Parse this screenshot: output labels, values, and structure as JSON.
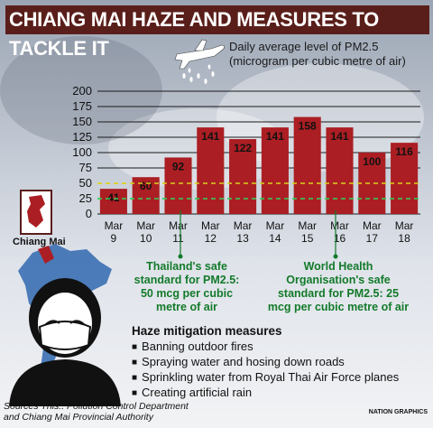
{
  "header": {
    "title": "CHIANG MAI HAZE AND MEASURES TO TACKLE IT",
    "subtitle_line1": "Daily average level of PM2.5",
    "subtitle_line2": "(microgram per cubic metre of air)"
  },
  "chart_data": {
    "type": "bar",
    "title": "CHIANG MAI HAZE AND MEASURES TO TACKLE IT",
    "subtitle": "Daily average level of PM2.5 (microgram per cubic metre of air)",
    "categories": [
      "Mar 9",
      "Mar 10",
      "Mar 11",
      "Mar 12",
      "Mar 13",
      "Mar 14",
      "Mar 15",
      "Mar 16",
      "Mar 17",
      "Mar 18"
    ],
    "category_lines": [
      [
        "Mar",
        "9"
      ],
      [
        "Mar",
        "10"
      ],
      [
        "Mar",
        "11"
      ],
      [
        "Mar",
        "12"
      ],
      [
        "Mar",
        "13"
      ],
      [
        "Mar",
        "14"
      ],
      [
        "Mar",
        "15"
      ],
      [
        "Mar",
        "16"
      ],
      [
        "Mar",
        "17"
      ],
      [
        "Mar",
        "18"
      ]
    ],
    "values": [
      41,
      60,
      92,
      141,
      122,
      141,
      158,
      141,
      100,
      116
    ],
    "ylim": [
      0,
      200
    ],
    "yticks": [
      0,
      25,
      50,
      75,
      100,
      125,
      150,
      175,
      200
    ],
    "reference_lines": [
      {
        "value": 50,
        "color": "#d7d21e",
        "label": "Thailand's safe standard for PM2.5: 50 mcg per cubic metre of air"
      },
      {
        "value": 25,
        "color": "#2fd35c",
        "label": "World Health Organisation's safe standard for PM2.5: 25 mcg per cubic metre of air"
      }
    ],
    "bar_color": "#ab1e23",
    "grid": true
  },
  "notes": {
    "thai": [
      "Thailand's safe",
      "standard for PM2.5:",
      "50 mcg per cubic",
      "metre of air"
    ],
    "who": [
      "World Health",
      "Organisation's safe",
      "standard for PM2.5: 25",
      "mcg per cubic metre of air"
    ]
  },
  "map": {
    "location_label": "Chiang Mai"
  },
  "mitigation": {
    "title": "Haze mitigation measures",
    "items": [
      "Banning outdoor fires",
      "Spraying water and hosing down roads",
      "Sprinkling water from Royal Thai Air Force planes",
      "Creating artificial rain"
    ]
  },
  "footer": {
    "source_line1": "Sources This:. Pollution Control Department",
    "source_line2": "and Chiang Mai Provincial Authority",
    "credit": "NATION GRAPHICS"
  },
  "icons": [
    "airplane-icon",
    "rain-drops-icon",
    "thailand-map-icon",
    "masked-person-icon"
  ]
}
